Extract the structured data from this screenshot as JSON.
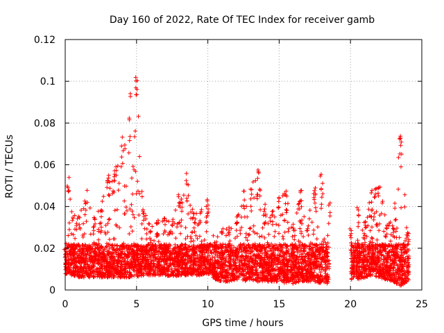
{
  "chart_data": {
    "type": "scatter",
    "title": "Day 160 of 2022, Rate Of TEC Index for receiver gamb",
    "xlabel": "GPS time / hours",
    "ylabel": "ROTI / TECUs",
    "xlim": [
      0,
      25
    ],
    "ylim": [
      0,
      0.12
    ],
    "x_ticks": [
      "0",
      "5",
      "10",
      "15",
      "20",
      "25"
    ],
    "y_ticks": [
      "0",
      "0.02",
      "0.04",
      "0.06",
      "0.08",
      "0.1",
      "0.12"
    ],
    "x_tick_values": [
      0,
      5,
      10,
      15,
      20,
      25
    ],
    "y_tick_values": [
      0,
      0.02,
      0.04,
      0.06,
      0.08,
      0.1,
      0.12
    ],
    "grid": true,
    "marker": "+",
    "point_color": "#ff0000",
    "data_gap_hours": [
      18.5,
      20.0
    ],
    "envelope": {
      "x": [
        0,
        0.2,
        0.5,
        1.0,
        1.5,
        2.0,
        2.5,
        3.0,
        3.5,
        4.0,
        4.5,
        5.0,
        5.5,
        6.0,
        6.5,
        7.0,
        7.5,
        8.0,
        8.5,
        9.0,
        9.5,
        10.0,
        10.5,
        11.0,
        11.5,
        12.0,
        12.5,
        13.0,
        13.5,
        14.0,
        14.5,
        15.0,
        15.5,
        16.0,
        16.5,
        17.0,
        17.5,
        18.0,
        18.5,
        20.0,
        20.5,
        21.0,
        21.5,
        22.0,
        22.5,
        23.0,
        23.5,
        24.0
      ],
      "max_roti": [
        0.02,
        0.056,
        0.035,
        0.038,
        0.05,
        0.035,
        0.04,
        0.056,
        0.06,
        0.074,
        0.095,
        0.106,
        0.04,
        0.03,
        0.034,
        0.035,
        0.034,
        0.048,
        0.056,
        0.038,
        0.04,
        0.045,
        0.023,
        0.03,
        0.031,
        0.038,
        0.048,
        0.05,
        0.058,
        0.042,
        0.04,
        0.047,
        0.048,
        0.032,
        0.048,
        0.033,
        0.05,
        0.056,
        0.042,
        0.03,
        0.04,
        0.035,
        0.048,
        0.052,
        0.034,
        0.032,
        0.077,
        0.03
      ],
      "min_roti": [
        0.008,
        0.007,
        0.007,
        0.006,
        0.006,
        0.006,
        0.006,
        0.006,
        0.006,
        0.006,
        0.006,
        0.006,
        0.007,
        0.007,
        0.007,
        0.007,
        0.006,
        0.007,
        0.007,
        0.007,
        0.007,
        0.008,
        0.005,
        0.004,
        0.004,
        0.005,
        0.004,
        0.005,
        0.004,
        0.004,
        0.004,
        0.004,
        0.003,
        0.003,
        0.004,
        0.004,
        0.004,
        0.003,
        0.003,
        0.005,
        0.005,
        0.006,
        0.007,
        0.006,
        0.005,
        0.004,
        0.002,
        0.004
      ]
    }
  }
}
